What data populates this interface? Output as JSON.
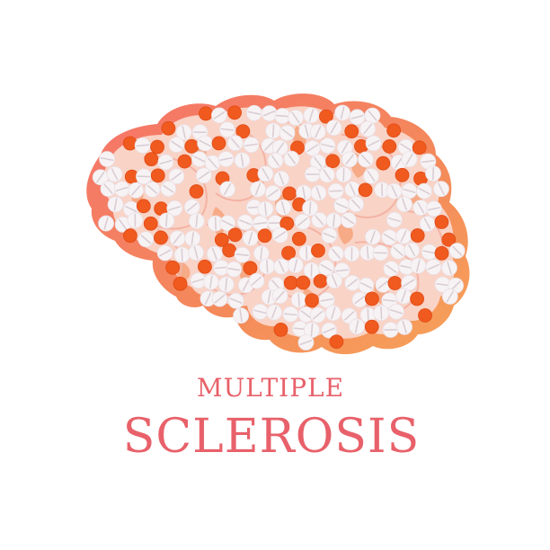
{
  "title": {
    "line1": "MULTIPLE",
    "line2": "SCLEROSIS"
  },
  "colors": {
    "text": "#e8616a",
    "brain_outline": "#f27a6a",
    "brain_outline_light": "#f7a35a",
    "brain_fill": "#f9d3c6",
    "lobe_border": "#f3b3a4",
    "white_pill": "#f7f3f5",
    "pill_line": "#d9cdd3",
    "orange_pill": "#f05a1f",
    "gap_shade": "#f6a37a"
  },
  "icons": {
    "brain": "brain-icon",
    "pill": "pill-icon"
  }
}
